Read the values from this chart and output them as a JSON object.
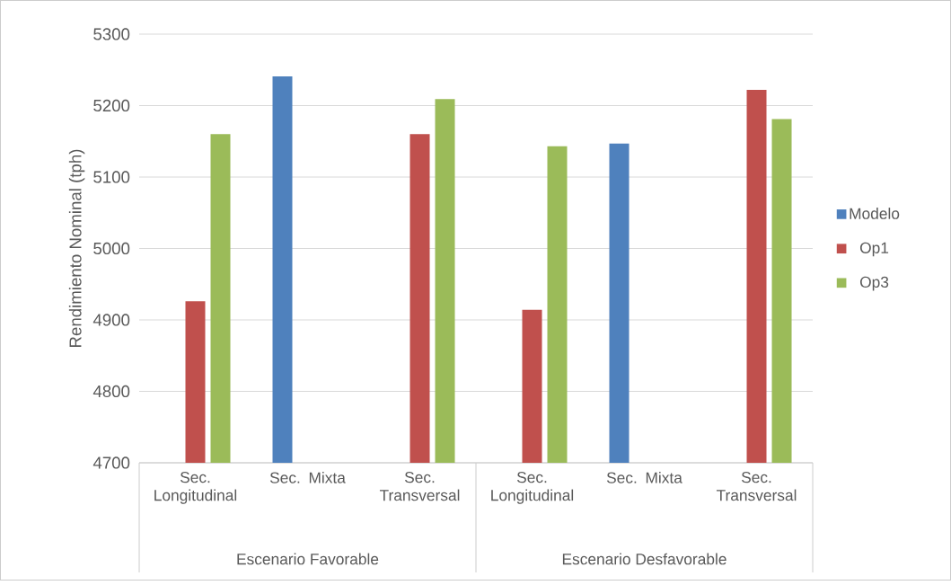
{
  "chart_data": {
    "type": "bar",
    "ylabel": "Rendimiento Nominal (tph)",
    "categories": [
      "Sec. Longitudinal",
      "Sec. Mixta",
      "Sec. Transversal",
      "Sec. Longitudinal",
      "Sec. Mixta",
      "Sec. Transversal"
    ],
    "annotations": [
      "Escenario Favorable",
      "Escenario Desfavorable"
    ],
    "series": [
      {
        "name": "Modelo",
        "color": "#4f81bd",
        "values": [
          null,
          5241,
          null,
          null,
          5147,
          null
        ]
      },
      {
        "name": "Op1",
        "color": "#c0504d",
        "values": [
          4926,
          null,
          5160,
          4914,
          null,
          5222
        ]
      },
      {
        "name": "Op3",
        "color": "#9bbb59",
        "values": [
          5160,
          null,
          5209,
          5143,
          null,
          5181
        ]
      }
    ],
    "ylim": [
      4700,
      5300
    ],
    "yticks": [
      4700,
      4800,
      4900,
      5000,
      5100,
      5200,
      5300
    ],
    "grid": "y",
    "legend": "right"
  }
}
